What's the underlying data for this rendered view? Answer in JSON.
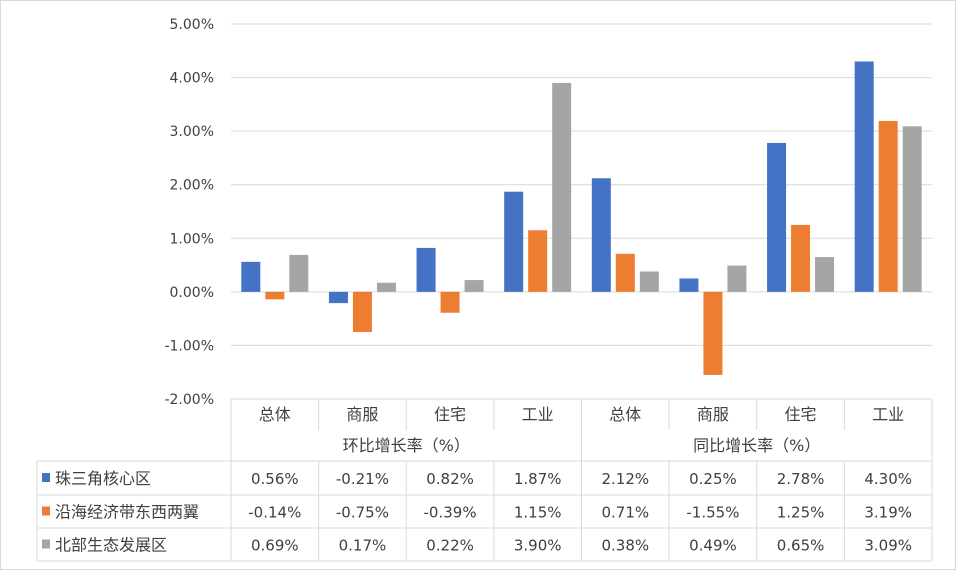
{
  "chart_data": {
    "type": "bar",
    "title": "",
    "ylim": [
      -2,
      5
    ],
    "y_ticks": [
      "5.00%",
      "4.00%",
      "3.00%",
      "2.00%",
      "1.00%",
      "0.00%",
      "-1.00%",
      "-2.00%"
    ],
    "y_tick_values": [
      5,
      4,
      3,
      2,
      1,
      0,
      -1,
      -2
    ],
    "categories": [
      "总体",
      "商服",
      "住宅",
      "工业",
      "总体",
      "商服",
      "住宅",
      "工业"
    ],
    "groups": [
      {
        "label": "环比增长率（%）",
        "span": 4
      },
      {
        "label": "同比增长率（%）",
        "span": 4
      }
    ],
    "series": [
      {
        "name": "珠三角核心区",
        "color": "#4472c4",
        "values": [
          0.56,
          -0.21,
          0.82,
          1.87,
          2.12,
          0.25,
          2.78,
          4.3
        ],
        "labels": [
          "0.56%",
          "-0.21%",
          "0.82%",
          "1.87%",
          "2.12%",
          "0.25%",
          "2.78%",
          "4.30%"
        ]
      },
      {
        "name": "沿海经济带东西两翼",
        "color": "#ed7d31",
        "values": [
          -0.14,
          -0.75,
          -0.39,
          1.15,
          0.71,
          -1.55,
          1.25,
          3.19
        ],
        "labels": [
          "-0.14%",
          "-0.75%",
          "-0.39%",
          "1.15%",
          "0.71%",
          "-1.55%",
          "1.25%",
          "3.19%"
        ]
      },
      {
        "name": "北部生态发展区",
        "color": "#a5a5a5",
        "values": [
          0.69,
          0.17,
          0.22,
          3.9,
          0.38,
          0.49,
          0.65,
          3.09
        ],
        "labels": [
          "0.69%",
          "0.17%",
          "0.22%",
          "3.90%",
          "0.38%",
          "0.49%",
          "0.65%",
          "3.09%"
        ]
      }
    ],
    "grid": true,
    "legend": "data-table"
  }
}
